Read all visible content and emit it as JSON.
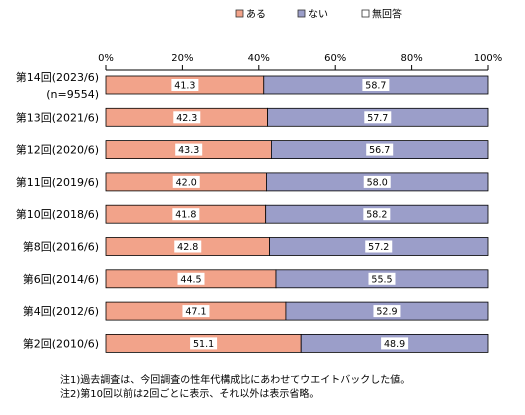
{
  "chart_data": {
    "type": "bar",
    "stacked": true,
    "orientation": "horizontal",
    "percent_axis": true,
    "xlim": [
      0,
      100
    ],
    "x_ticks": [
      "0%",
      "20%",
      "40%",
      "60%",
      "80%",
      "100%"
    ],
    "legend_position": "top",
    "grid": false,
    "categories": [
      [
        "第14回(2023/6)",
        "(n=9554)"
      ],
      [
        "第13回(2021/6)"
      ],
      [
        "第12回(2020/6)"
      ],
      [
        "第11回(2019/6)"
      ],
      [
        "第10回(2018/6)"
      ],
      [
        "第8回(2016/6)"
      ],
      [
        "第6回(2014/6)"
      ],
      [
        "第4回(2012/6)"
      ],
      [
        "第2回(2010/6)"
      ]
    ],
    "series": [
      {
        "name": "ある",
        "color": "#f2a38a",
        "values": [
          41.3,
          42.3,
          43.3,
          42.0,
          41.8,
          42.8,
          44.5,
          47.1,
          51.1
        ],
        "labels": [
          "41.3",
          "42.3",
          "43.3",
          "42.0",
          "41.8",
          "42.8",
          "44.5",
          "47.1",
          "51.1"
        ]
      },
      {
        "name": "ない",
        "color": "#9b9ec9",
        "values": [
          58.7,
          57.7,
          56.7,
          58.0,
          58.2,
          57.2,
          55.5,
          52.9,
          48.9
        ],
        "labels": [
          "58.7",
          "57.7",
          "56.7",
          "58.0",
          "58.2",
          "57.2",
          "55.5",
          "52.9",
          "48.9"
        ]
      },
      {
        "name": "無回答",
        "color": "#ffffff",
        "values": [
          0,
          0,
          0,
          0,
          0,
          0,
          0,
          0,
          0
        ],
        "labels": []
      }
    ]
  },
  "notes": [
    "注1)過去調査は、今回調査の性年代構成比にあわせてウエイトバックした値。",
    "注2)第10回以前は2回ごとに表示、それ以外は表示省略。"
  ]
}
